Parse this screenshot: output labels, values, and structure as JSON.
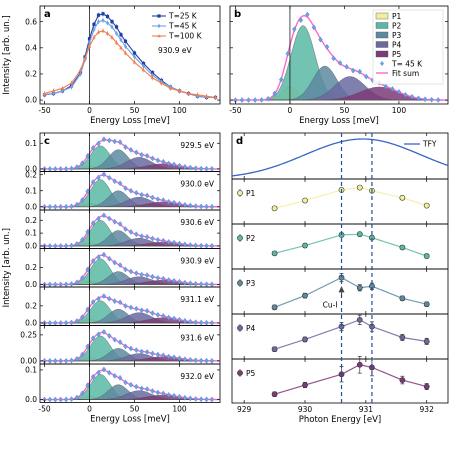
{
  "colors": {
    "T25": "#1f3f9f",
    "T45": "#6f9fe6",
    "T100": "#f07f50",
    "P1": "#f2ef9a",
    "P2": "#5bb8a5",
    "P3": "#5d8aa0",
    "P4": "#6a6aa0",
    "P5": "#7c3a78",
    "fit": "#ff66cc",
    "exp": "#6f9fe6",
    "tfy": "#3a66c4",
    "dash": "#1f4f9f"
  },
  "chart_data": [
    {
      "id": "a",
      "type": "line",
      "panel_label": "a",
      "xlabel": "Energy Loss [meV]",
      "ylabel": "Intensity [arb. un.]",
      "xlim": [
        -55,
        145
      ],
      "ylim": [
        -0.03,
        0.72
      ],
      "xticks": [
        -50,
        0,
        50,
        100
      ],
      "yticks": [
        0.0,
        0.2,
        0.4,
        0.6
      ],
      "ytick_labels": [
        "0.0",
        "0.2",
        "0.4",
        "0.6"
      ],
      "annotation": "930.9 eV",
      "legend_position": "top-right",
      "x": [
        -50,
        -40,
        -30,
        -20,
        -10,
        -5,
        0,
        5,
        10,
        15,
        20,
        25,
        30,
        35,
        40,
        50,
        60,
        70,
        80,
        90,
        100,
        110,
        120,
        130,
        140
      ],
      "series": [
        {
          "name": "T=25 K",
          "color_key": "T25",
          "values": [
            0.04,
            0.05,
            0.07,
            0.11,
            0.21,
            0.33,
            0.47,
            0.58,
            0.65,
            0.66,
            0.64,
            0.6,
            0.56,
            0.5,
            0.45,
            0.36,
            0.28,
            0.21,
            0.15,
            0.1,
            0.07,
            0.05,
            0.03,
            0.02,
            0.02
          ]
        },
        {
          "name": "T=45 K",
          "color_key": "T45",
          "values": [
            0.04,
            0.05,
            0.07,
            0.1,
            0.2,
            0.31,
            0.44,
            0.54,
            0.6,
            0.61,
            0.59,
            0.56,
            0.51,
            0.46,
            0.41,
            0.33,
            0.26,
            0.19,
            0.14,
            0.1,
            0.07,
            0.05,
            0.03,
            0.02,
            0.02
          ]
        },
        {
          "name": "T=100 K",
          "color_key": "T100",
          "values": [
            0.05,
            0.07,
            0.09,
            0.13,
            0.23,
            0.32,
            0.41,
            0.48,
            0.52,
            0.53,
            0.51,
            0.48,
            0.44,
            0.4,
            0.36,
            0.29,
            0.23,
            0.17,
            0.13,
            0.09,
            0.07,
            0.05,
            0.04,
            0.03,
            0.02
          ]
        }
      ]
    },
    {
      "id": "b",
      "type": "area",
      "panel_label": "b",
      "xlabel": "Energy Loss [meV]",
      "xlim": [
        -55,
        145
      ],
      "ylim": [
        -0.03,
        0.72
      ],
      "xticks": [
        -50,
        0,
        50,
        100
      ],
      "legend_position": "top-right",
      "peaks": [
        {
          "name": "P1",
          "color_key": "P1",
          "center": 0,
          "amplitude": 0.1,
          "width": 7
        },
        {
          "name": "P2",
          "color_key": "P2",
          "center": 12,
          "amplitude": 0.57,
          "width": 11
        },
        {
          "name": "P3",
          "color_key": "P3",
          "center": 32,
          "amplitude": 0.26,
          "width": 11
        },
        {
          "name": "P4",
          "color_key": "P4",
          "center": 55,
          "amplitude": 0.18,
          "width": 14
        },
        {
          "name": "P5",
          "color_key": "P5",
          "center": 82,
          "amplitude": 0.1,
          "width": 18
        }
      ],
      "experimental_name": "T= 45 K",
      "fit_name": "Fit sum"
    },
    {
      "id": "c",
      "type": "area",
      "panel_label": "c",
      "xlabel": "Energy Loss [meV]",
      "ylabel": "Intensity [arb. un.]",
      "xlim": [
        -55,
        145
      ],
      "xticks": [
        -50,
        0,
        50,
        100
      ],
      "subplots": [
        {
          "label": "929.5 eV",
          "ylim": [
            -0.01,
            0.14
          ],
          "yticks": [
            0.0,
            0.1
          ],
          "ytick_labels": [
            "0.0",
            "0.1"
          ],
          "amps": [
            0.01,
            0.09,
            0.075,
            0.045,
            0.02
          ]
        },
        {
          "label": "930.0 eV",
          "ylim": [
            -0.02,
            0.22
          ],
          "yticks": [
            0.0,
            0.1,
            0.2
          ],
          "ytick_labels": [
            "0.0",
            "0.1",
            "0.2"
          ],
          "amps": [
            0.02,
            0.17,
            0.1,
            0.06,
            0.03
          ]
        },
        {
          "label": "930.6 eV",
          "ylim": [
            -0.02,
            0.28
          ],
          "yticks": [
            0.0,
            0.1,
            0.2
          ],
          "ytick_labels": [
            "0.0",
            "0.1",
            "0.2"
          ],
          "amps": [
            0.02,
            0.2,
            0.12,
            0.06,
            0.03
          ]
        },
        {
          "label": "930.9 eV",
          "ylim": [
            -0.03,
            0.42
          ],
          "yticks": [
            0.0,
            0.2
          ],
          "ytick_labels": [
            "0.0",
            "0.2"
          ],
          "amps": [
            0.04,
            0.3,
            0.15,
            0.09,
            0.05
          ]
        },
        {
          "label": "931.1 eV",
          "ylim": [
            -0.03,
            0.42
          ],
          "yticks": [
            0.0,
            0.2
          ],
          "ytick_labels": [
            "0.0",
            "0.2"
          ],
          "amps": [
            0.04,
            0.26,
            0.16,
            0.12,
            0.06
          ]
        },
        {
          "label": "931.6 eV",
          "ylim": [
            -0.03,
            0.34
          ],
          "yticks": [
            0.0,
            0.25
          ],
          "ytick_labels": [
            "0.00",
            "0.25"
          ],
          "amps": [
            0.03,
            0.24,
            0.12,
            0.07,
            0.04
          ]
        },
        {
          "label": "932.0 eV",
          "ylim": [
            -0.01,
            0.12
          ],
          "yticks": [
            0.0,
            0.1
          ],
          "ytick_labels": [
            "0.0",
            "0.1"
          ],
          "amps": [
            0.01,
            0.085,
            0.05,
            0.03,
            0.015
          ]
        }
      ]
    },
    {
      "id": "d",
      "type": "line",
      "panel_label": "d",
      "xlabel": "Photon Energy [eV]",
      "xlim": [
        928.8,
        932.35
      ],
      "xticks": [
        929,
        930,
        931,
        932
      ],
      "vlines": [
        930.6,
        931.1
      ],
      "annotation": "Cu-I",
      "annotation_x": 930.6,
      "tfy": {
        "name": "TFY",
        "color_key": "tfy",
        "center": 930.95,
        "sigma": 0.95
      },
      "energies": [
        929.5,
        930.0,
        930.6,
        930.9,
        931.1,
        931.6,
        932.0
      ],
      "series": [
        {
          "name": "P1",
          "color_key": "P1",
          "values": [
            0.35,
            0.55,
            0.82,
            0.88,
            0.8,
            0.62,
            0.42
          ],
          "errors": [
            0.04,
            0.04,
            0.04,
            0.04,
            0.04,
            0.04,
            0.04
          ]
        },
        {
          "name": "P2",
          "color_key": "P2",
          "values": [
            0.35,
            0.55,
            0.82,
            0.84,
            0.75,
            0.5,
            0.28
          ],
          "errors": [
            0.05,
            0.05,
            0.05,
            0.05,
            0.05,
            0.05,
            0.05
          ]
        },
        {
          "name": "P3",
          "color_key": "P3",
          "values": [
            0.12,
            0.42,
            0.88,
            0.62,
            0.66,
            0.35,
            0.2
          ],
          "errors": [
            0.06,
            0.06,
            0.1,
            0.08,
            0.08,
            0.06,
            0.06
          ]
        },
        {
          "name": "P4",
          "color_key": "P4",
          "values": [
            0.2,
            0.45,
            0.78,
            0.95,
            0.78,
            0.5,
            0.4
          ],
          "errors": [
            0.06,
            0.06,
            0.1,
            0.12,
            0.12,
            0.08,
            0.08
          ]
        },
        {
          "name": "P5",
          "color_key": "P5",
          "values": [
            0.18,
            0.42,
            0.7,
            0.95,
            0.88,
            0.55,
            0.38
          ],
          "errors": [
            0.06,
            0.07,
            0.2,
            0.22,
            0.22,
            0.1,
            0.08
          ]
        }
      ]
    }
  ]
}
